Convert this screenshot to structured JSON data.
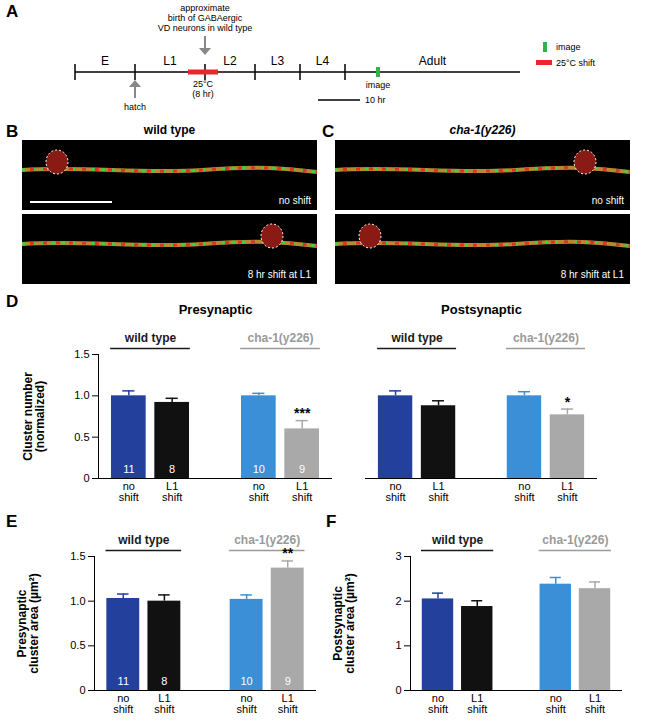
{
  "panels": [
    "A",
    "B",
    "C",
    "D",
    "E",
    "F"
  ],
  "timeline": {
    "stages": [
      "E",
      "L1",
      "L2",
      "L3",
      "L4",
      "Adult"
    ],
    "birth_note": "approximate\nbirth of GABAergic\nVD neurons in wild type",
    "shift_label": "25°C\n(8 hr)",
    "hatch_label": "hatch",
    "image_label": "image",
    "scale_label": "10 hr",
    "key": [
      {
        "name": "image",
        "color": "#2fb34a"
      },
      {
        "name": "25°C shift",
        "color": "#e8262d"
      }
    ]
  },
  "images": [
    {
      "title": "wild type",
      "rows": [
        "no shift",
        "8 hr shift at L1"
      ]
    },
    {
      "title": "cha-1(y226)",
      "rows": [
        "no shift",
        "8 hr shift at L1"
      ]
    }
  ],
  "chart_data": [
    {
      "type": "bar",
      "title": "Presynaptic",
      "y_label": "Cluster number\n(normalized)",
      "categories": [
        "no\nshift",
        "L1\nshift",
        "no\nshift",
        "L1\nshift"
      ],
      "groups": [
        {
          "name": "wild type",
          "color": "#1a1a1a",
          "members": [
            0,
            1
          ]
        },
        {
          "name": "cha-1(y226)",
          "color": "#9a9a9a",
          "members": [
            2,
            3
          ]
        }
      ],
      "values": [
        1.0,
        0.92,
        1.0,
        0.6
      ],
      "errors": [
        0.06,
        0.05,
        0.03,
        0.1
      ],
      "colors": [
        "#22409c",
        "#111111",
        "#3a8fd6",
        "#a9a9a9"
      ],
      "n": [
        11,
        8,
        10,
        9
      ],
      "significance": [
        null,
        null,
        null,
        "***"
      ],
      "ylim": [
        0,
        1.5
      ],
      "yticks": [
        0,
        0.5,
        {
          "value": 1,
          "label": "1.0"
        },
        1.5
      ]
    },
    {
      "type": "bar",
      "title": "Postsynaptic",
      "categories": [
        "no\nshift",
        "L1\nshift",
        "no\nshift",
        "L1\nshift"
      ],
      "groups": [
        {
          "name": "wild type",
          "color": "#1a1a1a",
          "members": [
            0,
            1
          ]
        },
        {
          "name": "cha-1(y226)",
          "color": "#9a9a9a",
          "members": [
            2,
            3
          ]
        }
      ],
      "values": [
        1.0,
        0.88,
        1.0,
        0.77
      ],
      "errors": [
        0.06,
        0.06,
        0.05,
        0.07
      ],
      "colors": [
        "#22409c",
        "#111111",
        "#3a8fd6",
        "#a9a9a9"
      ],
      "significance": [
        null,
        null,
        null,
        "*"
      ],
      "ylim": [
        0,
        1.5
      ],
      "yticks": [
        0,
        0.5,
        {
          "value": 1,
          "label": "1.0"
        },
        1.5
      ],
      "tick_labels": "x"
    },
    {
      "type": "bar",
      "y_label": "Presynaptic\ncluster area (µm²)",
      "categories": [
        "no\nshift",
        "L1\nshift",
        "no\nshift",
        "L1\nshift"
      ],
      "groups": [
        {
          "name": "wild type",
          "color": "#1a1a1a",
          "members": [
            0,
            1
          ]
        },
        {
          "name": "cha-1(y226)",
          "color": "#9a9a9a",
          "members": [
            2,
            3
          ]
        }
      ],
      "values": [
        1.03,
        1.0,
        1.02,
        1.37
      ],
      "errors": [
        0.05,
        0.07,
        0.05,
        0.08
      ],
      "colors": [
        "#22409c",
        "#111111",
        "#3a8fd6",
        "#a9a9a9"
      ],
      "n": [
        11,
        8,
        10,
        9
      ],
      "significance": [
        null,
        null,
        null,
        "**"
      ],
      "ylim": [
        0,
        1.5
      ],
      "yticks": [
        0,
        0.5,
        {
          "value": 1,
          "label": "1.0"
        },
        1.5
      ]
    },
    {
      "type": "bar",
      "y_label": "Postsynaptic\ncluster area (µm²)",
      "categories": [
        "no\nshift",
        "L1\nshift",
        "no\nshift",
        "L1\nshift"
      ],
      "groups": [
        {
          "name": "wild type",
          "color": "#1a1a1a",
          "members": [
            0,
            1
          ]
        },
        {
          "name": "cha-1(y226)",
          "color": "#9a9a9a",
          "members": [
            2,
            3
          ]
        }
      ],
      "values": [
        2.05,
        1.88,
        2.38,
        2.28
      ],
      "errors": [
        0.13,
        0.13,
        0.15,
        0.15
      ],
      "colors": [
        "#22409c",
        "#111111",
        "#3a8fd6",
        "#a9a9a9"
      ],
      "ylim": [
        0,
        3
      ],
      "yticks": [
        0,
        1,
        2,
        3
      ]
    }
  ]
}
